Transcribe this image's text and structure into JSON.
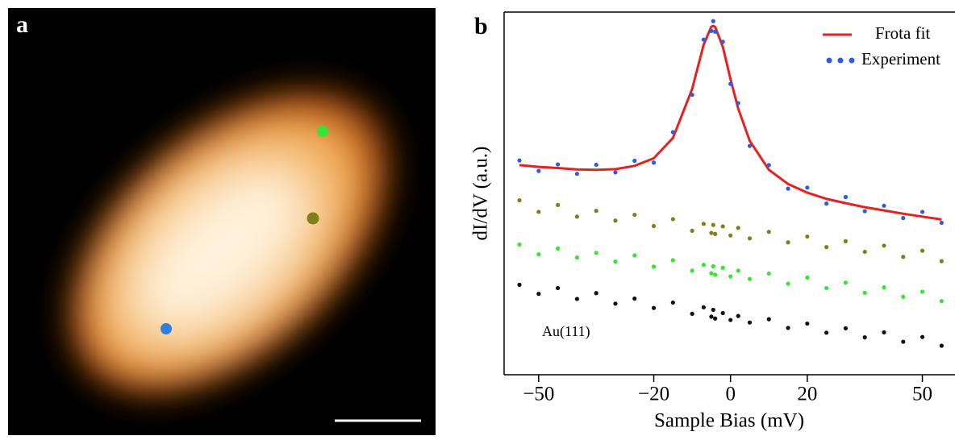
{
  "panels": {
    "a": "a",
    "b": "b"
  },
  "chart_data": {
    "type": "scatter",
    "x_label": "Sample Bias (mV)",
    "y_label": "dI/dV (a.u.)",
    "annotation": "Au(111)",
    "xlim": [
      -59,
      58.5
    ],
    "ylim": [
      0,
      100
    ],
    "xticks": [
      {
        "value": -50,
        "label": "−50"
      },
      {
        "value": -20,
        "label": "−20"
      },
      0,
      20,
      50
    ],
    "legend": "top-right",
    "x": [
      -55,
      -50,
      -45,
      -40,
      -35,
      -30,
      -25,
      -20,
      -15,
      -10,
      -7,
      -5,
      -4.5,
      -4,
      -2,
      0,
      2,
      5,
      10,
      15,
      20,
      25,
      30,
      35,
      40,
      45,
      50,
      55
    ],
    "series": [
      {
        "name": "Frota fit",
        "kind": "line",
        "color": "#e82020",
        "values": [
          57.8,
          57.3,
          57.0,
          56.6,
          56.5,
          56.7,
          57.6,
          59.7,
          65.3,
          78.8,
          91.0,
          96.0,
          96.2,
          95.9,
          90.4,
          81.5,
          73.4,
          64.5,
          56.5,
          52.6,
          50.2,
          48.5,
          47.3,
          46.2,
          45.3,
          44.4,
          43.6,
          42.8
        ]
      },
      {
        "name": "Experiment",
        "kind": "dots",
        "color": "#2e5be0",
        "values": [
          59.1,
          56.2,
          58.0,
          55.4,
          57.9,
          55.8,
          59.0,
          58.5,
          66.9,
          77.2,
          92.4,
          94.8,
          97.5,
          94.6,
          91.8,
          80.2,
          74.9,
          63.1,
          57.8,
          51.3,
          51.6,
          47.2,
          49.0,
          45.1,
          46.6,
          43.2,
          44.9,
          41.9
        ]
      },
      {
        "kind": "dots",
        "color": "#80801a",
        "values": [
          48.1,
          44.9,
          46.8,
          43.6,
          45.2,
          42.5,
          44.1,
          41.0,
          42.9,
          39.7,
          41.6,
          39.1,
          41.3,
          38.8,
          40.9,
          38.4,
          40.5,
          37.6,
          39.4,
          36.5,
          38.1,
          35.2,
          36.8,
          33.9,
          35.6,
          32.5,
          34.2,
          31.3
        ]
      },
      {
        "kind": "dots",
        "color": "#33e633",
        "values": [
          35.9,
          33.2,
          34.8,
          32.3,
          33.6,
          31.2,
          32.9,
          29.8,
          31.6,
          28.7,
          30.3,
          28.0,
          29.9,
          27.6,
          29.5,
          27.1,
          28.7,
          26.4,
          27.9,
          25.1,
          26.8,
          23.9,
          25.4,
          22.6,
          24.1,
          21.5,
          22.9,
          20.3
        ]
      },
      {
        "kind": "dots",
        "color": "#111111",
        "values": [
          24.8,
          22.3,
          23.9,
          20.9,
          22.5,
          19.6,
          21.0,
          18.4,
          19.9,
          16.8,
          18.6,
          16.0,
          17.9,
          15.5,
          17.0,
          15.1,
          16.2,
          14.4,
          15.3,
          12.9,
          14.1,
          11.6,
          12.8,
          10.3,
          11.7,
          9.1,
          10.4,
          8.0
        ]
      }
    ]
  }
}
